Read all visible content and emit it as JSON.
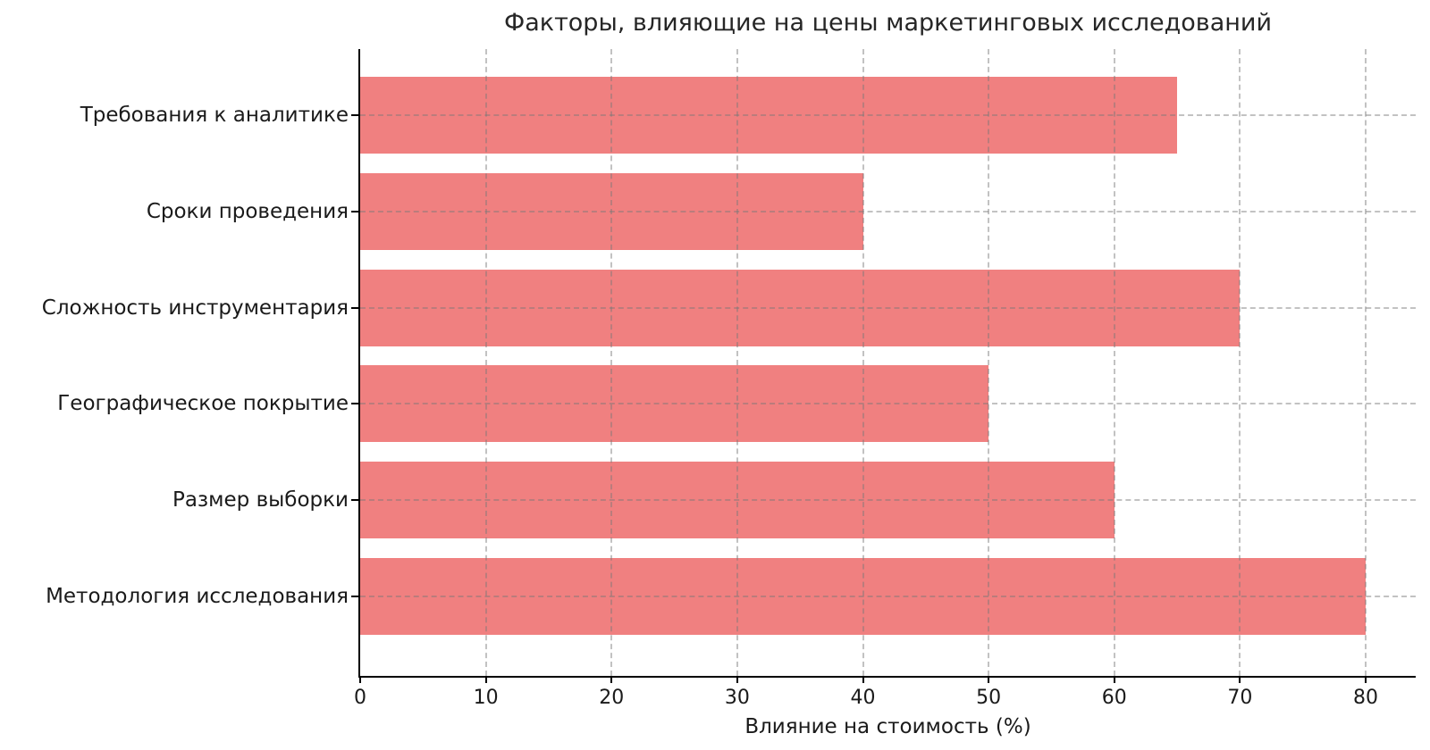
{
  "chart_data": {
    "type": "bar",
    "orientation": "horizontal",
    "title": "Факторы, влияющие на цены маркетинговых исследований",
    "xlabel": "Влияние на стоимость (%)",
    "ylabel": "",
    "categories": [
      "Требования к аналитике",
      "Сроки проведения",
      "Сложность инструментария",
      "Географическое покрытие",
      "Размер выборки",
      "Методология исследования"
    ],
    "values": [
      65,
      40,
      70,
      50,
      60,
      80
    ],
    "xticks": [
      0,
      10,
      20,
      30,
      40,
      50,
      60,
      70,
      80
    ],
    "xlim": [
      0,
      84
    ],
    "grid": "dashed",
    "legend": false,
    "bar_color": "#f08080",
    "background_color": "#ffffff",
    "axis_color": "#000000",
    "text_color": "#1a1a1a"
  }
}
